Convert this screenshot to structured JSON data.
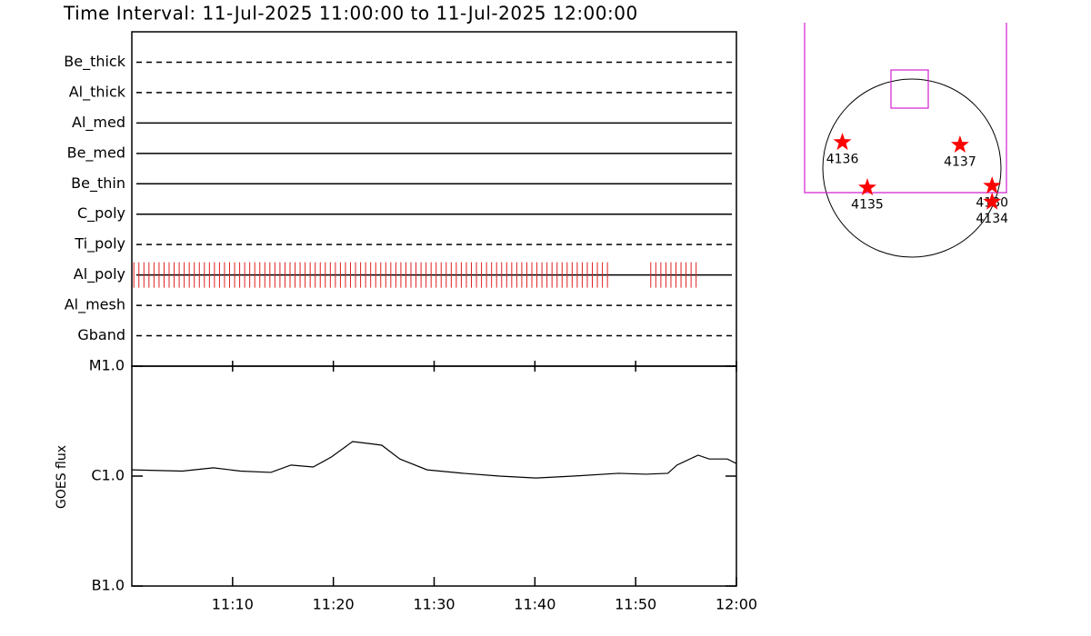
{
  "chart_data": [
    {
      "type": "timeline",
      "title": "Time Interval: 11-Jul-2025 11:00:00 to 11-Jul-2025 12:00:00",
      "xlim": [
        0,
        60
      ],
      "color": "#e02020",
      "rows": [
        {
          "label": "Be_thick",
          "line": "dashed"
        },
        {
          "label": "Al_thick",
          "line": "dashed"
        },
        {
          "label": "Al_med",
          "line": "solid"
        },
        {
          "label": "Be_med",
          "line": "solid"
        },
        {
          "label": "Be_thin",
          "line": "solid"
        },
        {
          "label": "C_poly",
          "line": "solid"
        },
        {
          "label": "Ti_poly",
          "line": "dashed"
        },
        {
          "label": "Al_poly",
          "line": "solid",
          "x": [
            0.2,
            0.7,
            1.2,
            1.7,
            2.2,
            2.7,
            3.2,
            3.7,
            4.2,
            4.7,
            5.2,
            5.7,
            6.2,
            6.7,
            7.2,
            7.7,
            8.2,
            8.7,
            9.2,
            9.7,
            10.2,
            10.7,
            11.2,
            11.7,
            12.2,
            12.7,
            13.2,
            13.7,
            14.2,
            14.7,
            15.2,
            15.7,
            16.2,
            16.7,
            17.2,
            17.7,
            18.2,
            18.7,
            19.2,
            19.7,
            20.2,
            20.7,
            21.2,
            21.7,
            22.2,
            22.7,
            23.2,
            23.7,
            24.2,
            24.7,
            25.2,
            25.7,
            26.2,
            26.7,
            27.2,
            27.7,
            28.2,
            28.7,
            29.2,
            29.7,
            30.2,
            30.7,
            31.2,
            31.7,
            32.2,
            32.7,
            33.2,
            33.7,
            34.2,
            34.7,
            35.2,
            35.7,
            36.2,
            36.7,
            37.2,
            37.7,
            38.2,
            38.7,
            39.2,
            39.7,
            40.2,
            40.7,
            41.2,
            41.7,
            42.2,
            42.7,
            43.2,
            43.7,
            44.2,
            44.7,
            45.2,
            45.7,
            46.2,
            46.7,
            47.2,
            51.5,
            52.0,
            52.5,
            53.0,
            53.5,
            54.0,
            54.5,
            55.0,
            55.5,
            56.0
          ]
        },
        {
          "label": "Al_mesh",
          "line": "dashed"
        },
        {
          "label": "Gband",
          "line": "dashed"
        }
      ]
    },
    {
      "type": "line",
      "y_label": "GOES flux",
      "log_y": true,
      "color": "#000000",
      "xlim": [
        0,
        60
      ],
      "xticks": [
        {
          "value": 10,
          "label": "11:10"
        },
        {
          "value": 20,
          "label": "11:20"
        },
        {
          "value": 30,
          "label": "11:30"
        },
        {
          "value": 40,
          "label": "11:40"
        },
        {
          "value": 50,
          "label": "11:50"
        },
        {
          "value": 60,
          "label": "12:00"
        }
      ],
      "ylim": [
        1e-07,
        1e-05
      ],
      "yticks": [
        {
          "value": 1e-07,
          "label": "B1.0"
        },
        {
          "value": 1e-06,
          "label": "C1.0"
        },
        {
          "value": 1e-05,
          "label": "M1.0"
        }
      ],
      "x": [
        0,
        5,
        8.1,
        10.8,
        13.8,
        15.8,
        18,
        19.8,
        21.9,
        23.5,
        24.8,
        26.6,
        29.3,
        32.9,
        36.5,
        40.1,
        43.8,
        48.3,
        51,
        53.2,
        54.1,
        56.2,
        57.3,
        59.1,
        60
      ],
      "values": [
        1.14e-06,
        1.11e-06,
        1.19e-06,
        1.11e-06,
        1.08e-06,
        1.26e-06,
        1.21e-06,
        1.49e-06,
        2.06e-06,
        1.98e-06,
        1.91e-06,
        1.43e-06,
        1.14e-06,
        1.06e-06,
        1e-06,
        9.6e-07,
        1e-06,
        1.06e-06,
        1.04e-06,
        1.06e-06,
        1.26e-06,
        1.55e-06,
        1.43e-06,
        1.43e-06,
        1.3e-06
      ]
    },
    {
      "type": "scatter",
      "color": "#ff0000",
      "labels": [
        "4136",
        "4137",
        "4135",
        "4130",
        "4134"
      ],
      "x": [
        -0.78,
        0.54,
        -0.5,
        0.9,
        0.9
      ],
      "values": [
        0.29,
        0.26,
        -0.22,
        -0.2,
        -0.38
      ]
    }
  ]
}
